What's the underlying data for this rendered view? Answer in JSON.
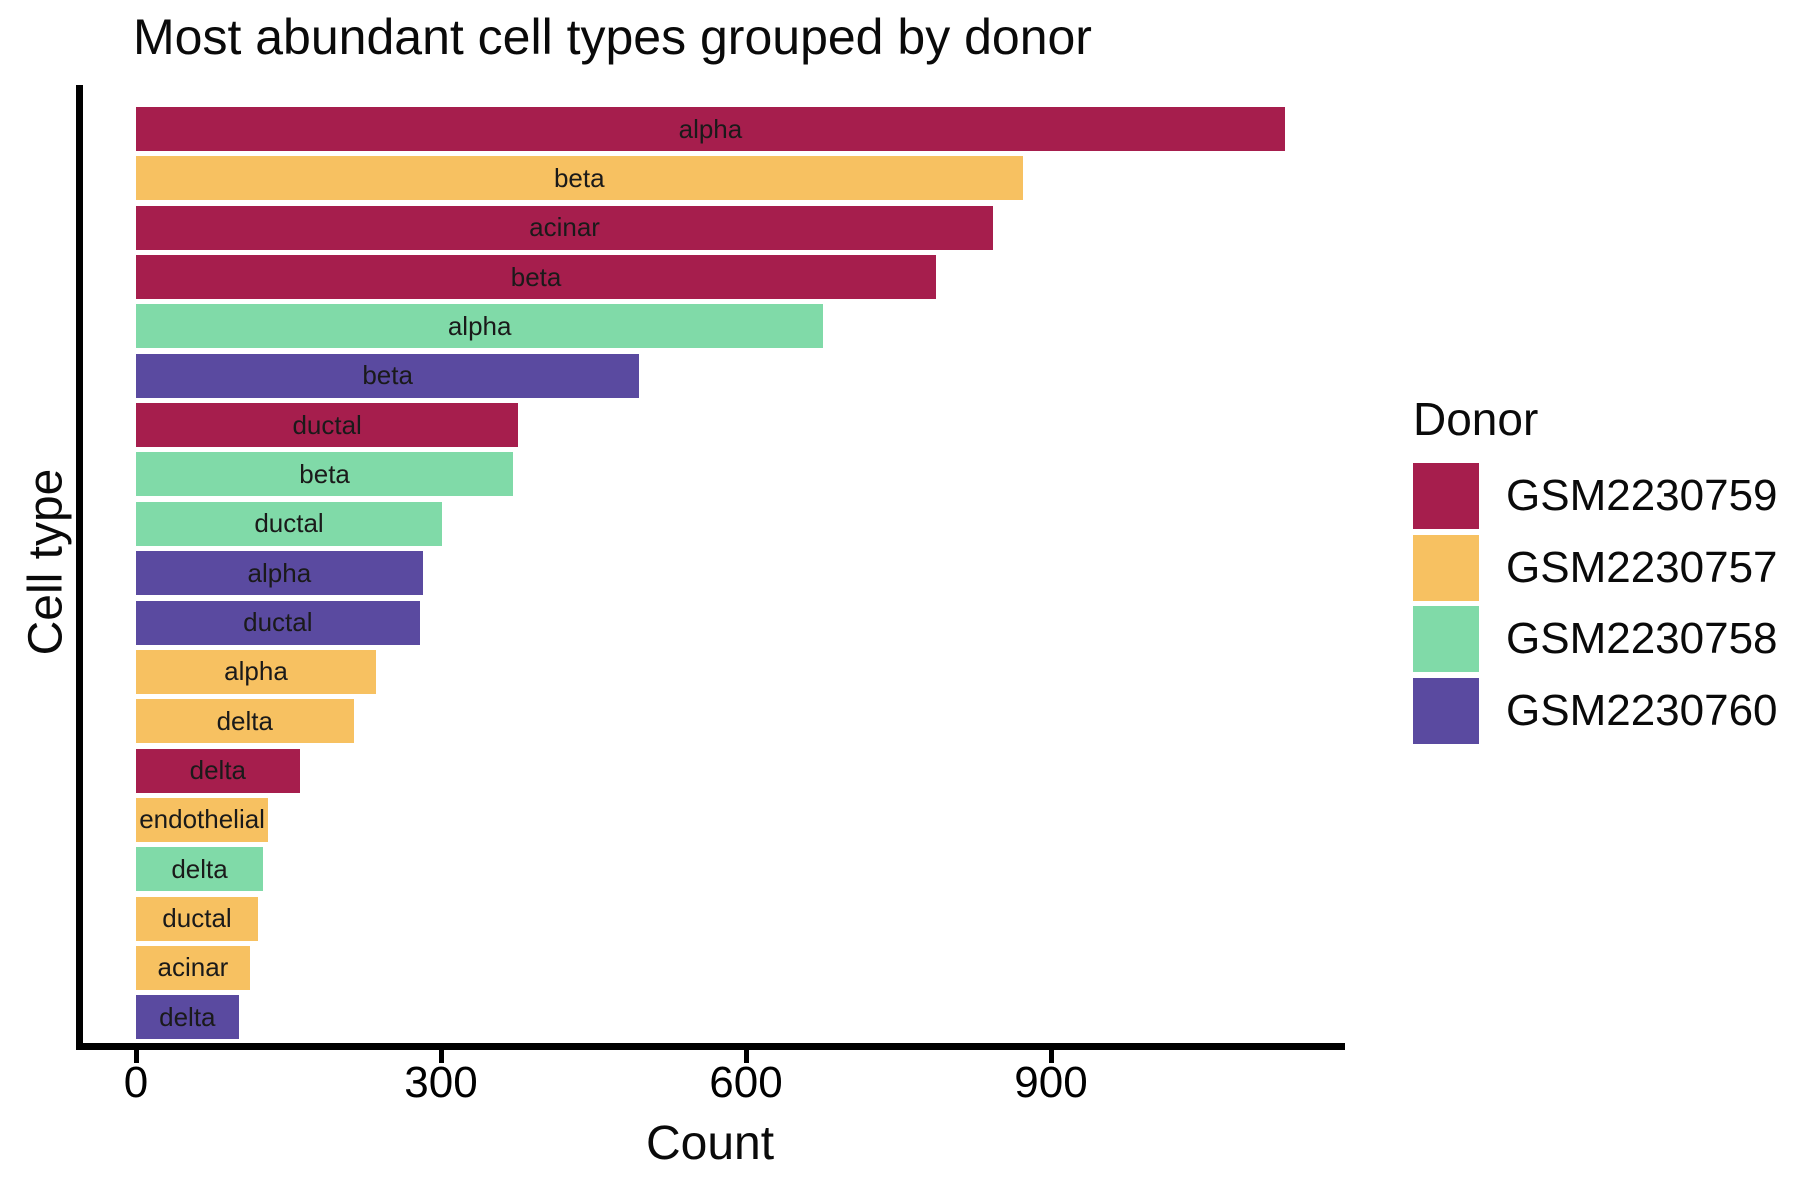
{
  "page": {
    "background": "#ffffff",
    "text_color": "#0a0a0a"
  },
  "chart_data": {
    "type": "bar",
    "orientation": "horizontal",
    "title": "Most abundant cell types grouped by donor",
    "xlabel": "Count",
    "ylabel": "Cell type",
    "xlim": [
      0,
      1190
    ],
    "xticks": [
      0,
      300,
      600,
      900
    ],
    "grid": false,
    "bar_label_placement": "inside-center",
    "legend": {
      "title": "Donor",
      "position": "right",
      "entries": [
        {
          "label": "GSM2230759",
          "color": "#A61E4D"
        },
        {
          "label": "GSM2230757",
          "color": "#F7C161"
        },
        {
          "label": "GSM2230758",
          "color": "#80DAA8"
        },
        {
          "label": "GSM2230760",
          "color": "#5A4AA0"
        }
      ]
    },
    "bars": [
      {
        "cell_type": "alpha",
        "donor": "GSM2230759",
        "count": 1130
      },
      {
        "cell_type": "beta",
        "donor": "GSM2230757",
        "count": 872
      },
      {
        "cell_type": "acinar",
        "donor": "GSM2230759",
        "count": 843
      },
      {
        "cell_type": "beta",
        "donor": "GSM2230759",
        "count": 787
      },
      {
        "cell_type": "alpha",
        "donor": "GSM2230758",
        "count": 676
      },
      {
        "cell_type": "beta",
        "donor": "GSM2230760",
        "count": 495
      },
      {
        "cell_type": "ductal",
        "donor": "GSM2230759",
        "count": 376
      },
      {
        "cell_type": "beta",
        "donor": "GSM2230758",
        "count": 371
      },
      {
        "cell_type": "ductal",
        "donor": "GSM2230758",
        "count": 301
      },
      {
        "cell_type": "alpha",
        "donor": "GSM2230760",
        "count": 282
      },
      {
        "cell_type": "ductal",
        "donor": "GSM2230760",
        "count": 279
      },
      {
        "cell_type": "alpha",
        "donor": "GSM2230757",
        "count": 236
      },
      {
        "cell_type": "delta",
        "donor": "GSM2230757",
        "count": 214
      },
      {
        "cell_type": "delta",
        "donor": "GSM2230759",
        "count": 161
      },
      {
        "cell_type": "endothelial",
        "donor": "GSM2230757",
        "count": 130
      },
      {
        "cell_type": "delta",
        "donor": "GSM2230758",
        "count": 125
      },
      {
        "cell_type": "ductal",
        "donor": "GSM2230757",
        "count": 120
      },
      {
        "cell_type": "acinar",
        "donor": "GSM2230757",
        "count": 112
      },
      {
        "cell_type": "delta",
        "donor": "GSM2230760",
        "count": 101
      }
    ],
    "axis_color": "#000000"
  }
}
